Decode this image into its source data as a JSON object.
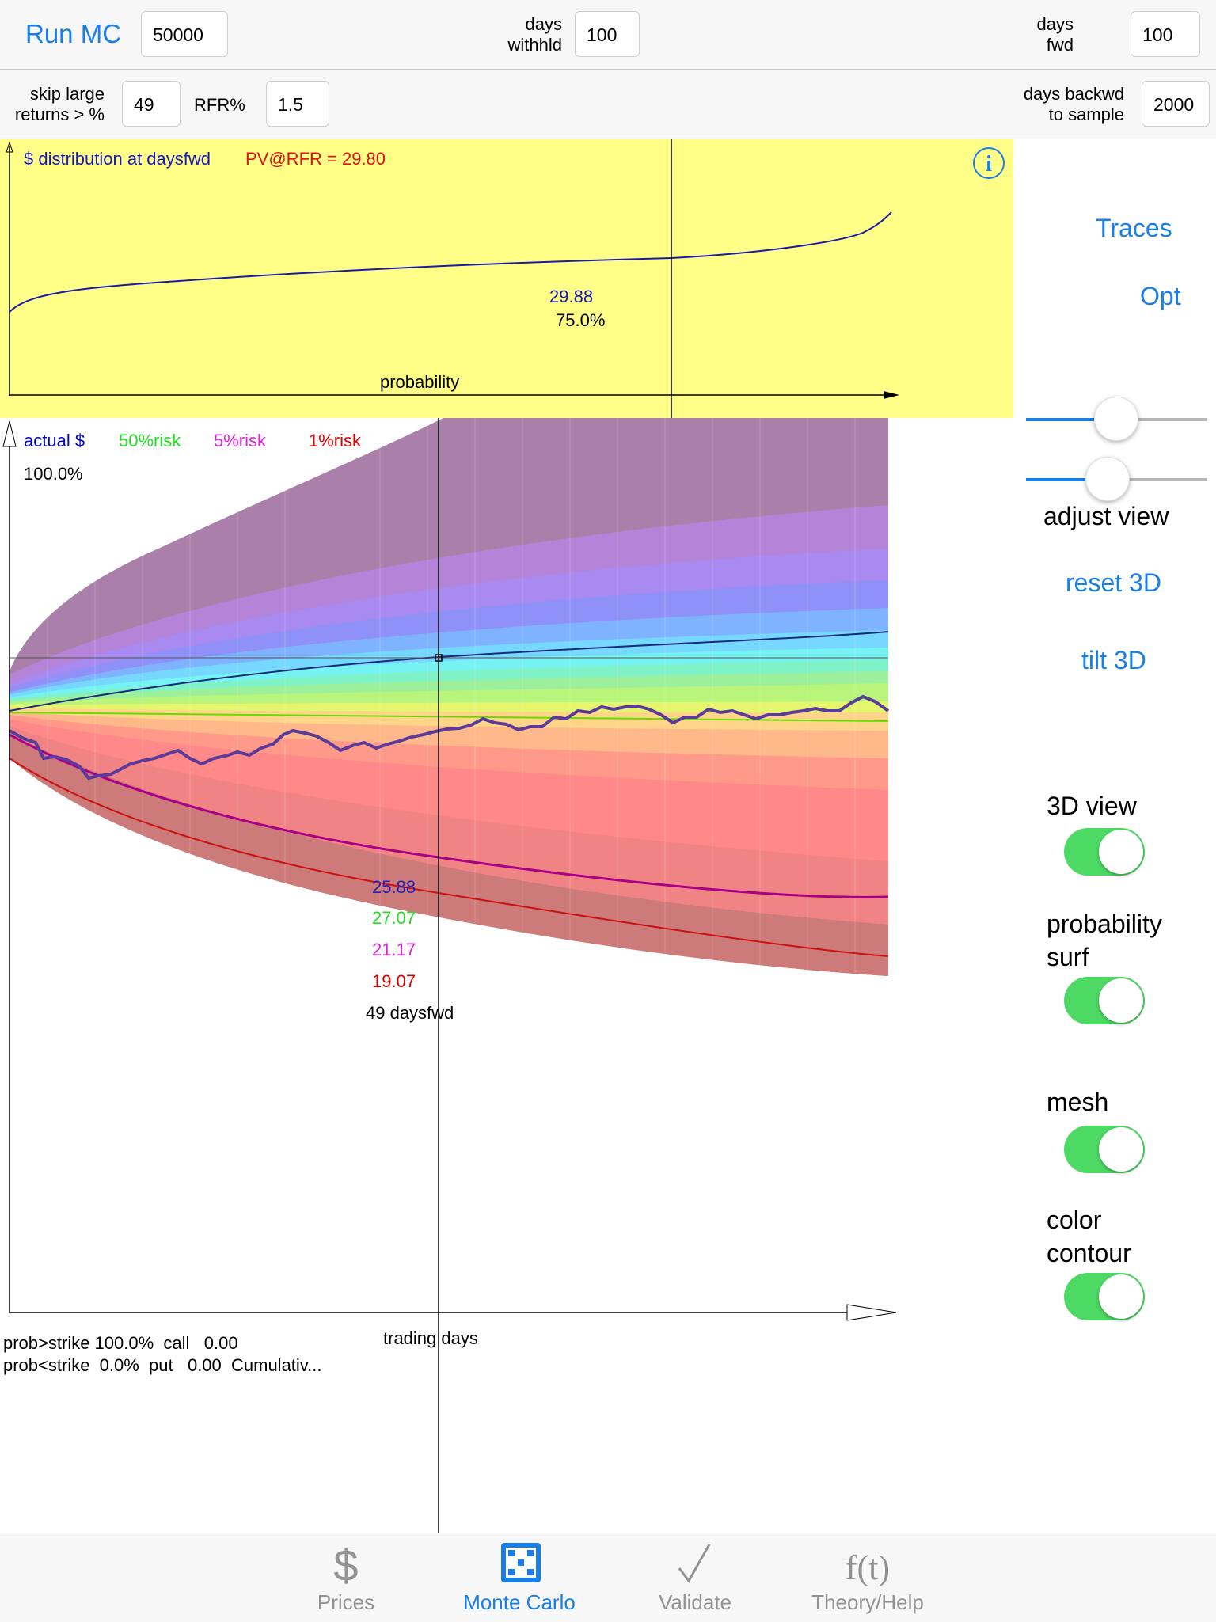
{
  "toolbar": {
    "run_label": "Run MC",
    "runs_value": "50000",
    "days_withhld_label_1": "days",
    "days_withhld_label_2": "withhld",
    "days_withhld_value": "100",
    "days_fwd_label_1": "days",
    "days_fwd_label_2": "fwd",
    "days_fwd_value": "100"
  },
  "toolbar2": {
    "skip_label_1": "skip large",
    "skip_label_2": "returns > %",
    "skip_value": "49",
    "rfr_label": "RFR%",
    "rfr_value": "1.5",
    "days_backwd_label_1": "days backwd",
    "days_backwd_label_2": "to sample",
    "days_backwd_value": "2000"
  },
  "colors": {
    "accent": "#1a7ee8",
    "chart_bg": "#ffff88",
    "toggle_on": "#4cd964",
    "actual": "#0000cc",
    "risk50": "#22dd22",
    "risk5": "#dd22dd",
    "risk1": "#dd0000"
  },
  "distribution": {
    "title": "$ distribution at daysfwd",
    "pv_text": "PV@RFR =  29.80",
    "value_label": "29.88",
    "prob_label": "75.0%",
    "xlabel": "probability",
    "info_icon": "info-icon"
  },
  "sidebar": {
    "traces": "Traces",
    "opt": "Opt",
    "adjust_view": "adjust view",
    "reset_3d": "reset 3D",
    "tilt_3d": "tilt 3D",
    "view3d": "3D view",
    "prob_surf_1": "probability",
    "prob_surf_2": "surf",
    "mesh": "mesh",
    "color_contour_1": "color",
    "color_contour_2": "contour",
    "slider1_level": 0.5,
    "slider2_level": 0.45
  },
  "mc_chart": {
    "legend": {
      "actual": "actual $",
      "r50": "50%risk",
      "r5": "5%risk",
      "r1": "1%risk"
    },
    "top_pct": "100.0%",
    "value_actual": "25.88",
    "value_50": "27.07",
    "value_5": "21.17",
    "value_1": "19.07",
    "days_label": "49 daysfwd",
    "xlabel": "trading days"
  },
  "footer_stats": {
    "line1": "prob>strike 100.0%  call   0.00",
    "line2": "prob<strike  0.0%  put   0.00  Cumulativ..."
  },
  "tabs": [
    {
      "label": "Prices",
      "icon": "dollar-icon"
    },
    {
      "label": "Monte Carlo",
      "icon": "dice-icon"
    },
    {
      "label": "Validate",
      "icon": "checkmark-icon"
    },
    {
      "label": "Theory/Help",
      "icon": "function-icon"
    }
  ],
  "chart_data": {
    "type": "area",
    "title": "$ distribution at daysfwd",
    "xlabel": "trading days",
    "legend": [
      "actual $",
      "50%risk",
      "5%risk",
      "1%risk"
    ],
    "readout_day": 49,
    "readout_values": {
      "actual": 25.88,
      "risk50": 27.07,
      "risk5": 21.17,
      "risk1": 19.07
    },
    "distribution_readout": {
      "value": 29.88,
      "probability": 0.75,
      "pv_rfr": 29.8
    }
  }
}
